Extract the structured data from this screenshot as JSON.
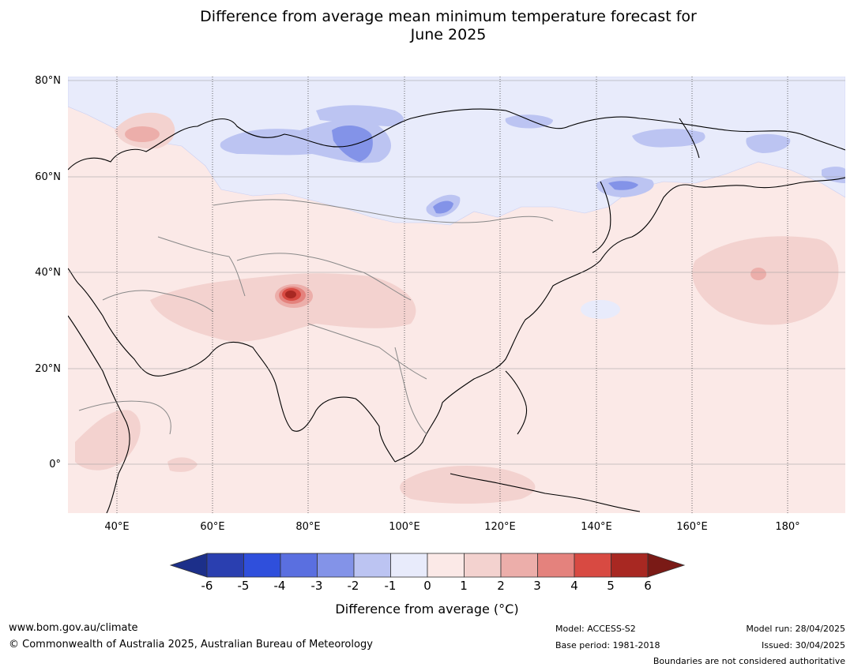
{
  "title_line1": "Difference from average mean minimum temperature forecast for",
  "title_line2": "June 2025",
  "latitude_labels": [
    "80°N",
    "60°N",
    "40°N",
    "20°N",
    "0°"
  ],
  "longitude_labels": [
    "40°E",
    "60°E",
    "80°E",
    "100°E",
    "120°E",
    "140°E",
    "160°E",
    "180°"
  ],
  "colorbar": {
    "ticks": [
      "-6",
      "-5",
      "-4",
      "-3",
      "-2",
      "-1",
      "0",
      "1",
      "2",
      "3",
      "4",
      "5",
      "6"
    ],
    "colors": [
      "#1c2f8a",
      "#2a3fb0",
      "#2f4fdc",
      "#5a6fe0",
      "#8393e8",
      "#bcc4f2",
      "#e8ebfb",
      "#fbe9e7",
      "#f3d2cf",
      "#ecaeaa",
      "#e4827d",
      "#d84a42",
      "#a82822",
      "#7a1a16"
    ],
    "label": "Difference from average (°C)"
  },
  "footer": {
    "website": "www.bom.gov.au/climate",
    "copyright": "© Commonwealth of Australia 2025, Australian Bureau of Meteorology",
    "model": "Model: ACCESS-S2",
    "base_period": "Base period: 1981-2018",
    "model_run": "Model run: 28/04/2025",
    "issued": "Issued: 30/04/2025",
    "disclaimer": "Boundaries are not considered authoritative"
  }
}
